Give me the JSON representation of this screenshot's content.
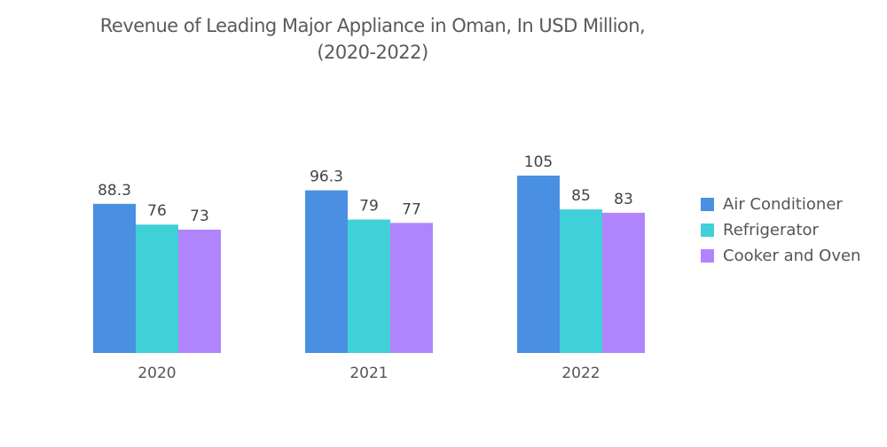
{
  "chart_data": {
    "type": "bar",
    "title": "Revenue of Leading Major Appliance in Oman, In USD Million,",
    "subtitle": "(2020-2022)",
    "xlabel": "",
    "ylabel": "",
    "categories": [
      "2020",
      "2021",
      "2022"
    ],
    "series": [
      {
        "name": "Air Conditioner",
        "color": "#4a90e2",
        "values": [
          88.3,
          96.3,
          105
        ]
      },
      {
        "name": "Refrigerator",
        "color": "#40d0d8",
        "values": [
          76,
          79,
          85
        ]
      },
      {
        "name": "Cooker and Oven",
        "color": "#b084fc",
        "values": [
          73,
          77,
          83
        ]
      }
    ],
    "data_labels": [
      [
        "88.3",
        "76",
        "73"
      ],
      [
        "96.3",
        "79",
        "77"
      ],
      [
        "105",
        "85",
        "83"
      ]
    ],
    "ylim": [
      0,
      105
    ],
    "grid": false,
    "legend_position": "right"
  }
}
